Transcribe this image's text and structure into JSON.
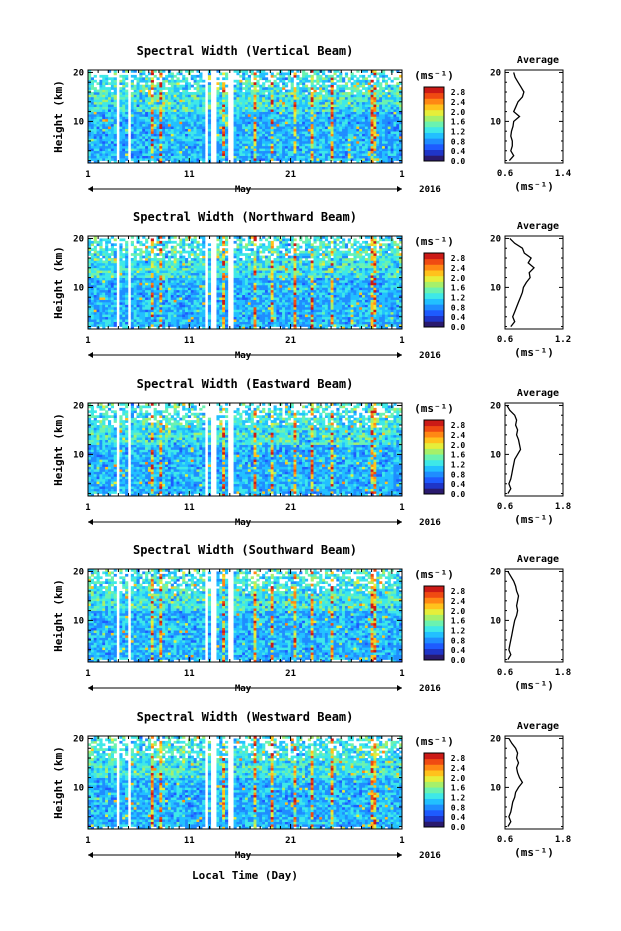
{
  "chart_data": [
    {
      "type": "heatmap",
      "title": "Spectral Width (Vertical Beam)",
      "ylabel": "Height (km)",
      "month_label": "May",
      "year_label": "2016",
      "x_tick_labels": [
        "1",
        "11",
        "21",
        "1"
      ],
      "y_tick_labels": [
        "10",
        "20"
      ],
      "colorbar": {
        "unit": "(ms⁻¹)",
        "ticks": [
          "0.0",
          "0.4",
          "0.8",
          "1.2",
          "1.6",
          "2.0",
          "2.4",
          "2.8"
        ],
        "range": [
          0,
          2.8
        ]
      },
      "average": {
        "title": "Average",
        "xlabel": "(ms⁻¹)",
        "x_tick_labels": [
          "0.6",
          "1.4"
        ],
        "xlim": [
          0.6,
          1.4
        ],
        "y_tick_labels": [
          "10",
          "20"
        ],
        "height_km": [
          2,
          3,
          4,
          5,
          6,
          7,
          8,
          9,
          10,
          11,
          12,
          13,
          14,
          15,
          16,
          17,
          18,
          19,
          20
        ],
        "width": [
          0.66,
          0.72,
          0.68,
          0.7,
          0.7,
          0.68,
          0.69,
          0.71,
          0.72,
          0.8,
          0.72,
          0.75,
          0.78,
          0.84,
          0.86,
          0.82,
          0.78,
          0.74,
          0.72
        ]
      }
    },
    {
      "type": "heatmap",
      "title": "Spectral Width (Northward Beam)",
      "ylabel": "Height (km)",
      "month_label": "May",
      "year_label": "2016",
      "x_tick_labels": [
        "1",
        "11",
        "21",
        "1"
      ],
      "y_tick_labels": [
        "10",
        "20"
      ],
      "colorbar": {
        "unit": "(ms⁻¹)",
        "ticks": [
          "0.0",
          "0.4",
          "0.8",
          "1.2",
          "1.6",
          "2.0",
          "2.4",
          "2.8"
        ],
        "range": [
          0,
          2.8
        ]
      },
      "average": {
        "title": "Average",
        "xlabel": "(ms⁻¹)",
        "x_tick_labels": [
          "0.6",
          "1.2"
        ],
        "xlim": [
          0.6,
          1.2
        ],
        "y_tick_labels": [
          "10",
          "20"
        ],
        "height_km": [
          2,
          3,
          4,
          5,
          6,
          7,
          8,
          9,
          10,
          11,
          12,
          13,
          14,
          15,
          16,
          17,
          18,
          19,
          20
        ],
        "width": [
          0.66,
          0.7,
          0.68,
          0.7,
          0.72,
          0.74,
          0.76,
          0.78,
          0.79,
          0.82,
          0.86,
          0.85,
          0.9,
          0.84,
          0.87,
          0.8,
          0.78,
          0.7,
          0.65
        ]
      }
    },
    {
      "type": "heatmap",
      "title": "Spectral Width (Eastward Beam)",
      "ylabel": "Height (km)",
      "month_label": "May",
      "year_label": "2016",
      "x_tick_labels": [
        "1",
        "11",
        "21",
        "1"
      ],
      "y_tick_labels": [
        "10",
        "20"
      ],
      "colorbar": {
        "unit": "(ms⁻¹)",
        "ticks": [
          "0.0",
          "0.4",
          "0.8",
          "1.2",
          "1.6",
          "2.0",
          "2.4",
          "2.8"
        ],
        "range": [
          0,
          2.8
        ]
      },
      "average": {
        "title": "Average",
        "xlabel": "(ms⁻¹)",
        "x_tick_labels": [
          "0.6",
          "1.8"
        ],
        "xlim": [
          0.6,
          1.8
        ],
        "y_tick_labels": [
          "10",
          "20"
        ],
        "height_km": [
          2,
          3,
          4,
          5,
          6,
          7,
          8,
          9,
          10,
          11,
          12,
          13,
          14,
          15,
          16,
          17,
          18,
          19,
          20
        ],
        "width": [
          0.66,
          0.72,
          0.68,
          0.72,
          0.74,
          0.76,
          0.78,
          0.8,
          0.86,
          0.92,
          0.9,
          0.88,
          0.84,
          0.86,
          0.82,
          0.84,
          0.8,
          0.7,
          0.64
        ]
      }
    },
    {
      "type": "heatmap",
      "title": "Spectral Width (Southward Beam)",
      "ylabel": "Height (km)",
      "month_label": "May",
      "year_label": "2016",
      "x_tick_labels": [
        "1",
        "11",
        "21",
        "1"
      ],
      "y_tick_labels": [
        "10",
        "20"
      ],
      "colorbar": {
        "unit": "(ms⁻¹)",
        "ticks": [
          "0.0",
          "0.4",
          "0.8",
          "1.2",
          "1.6",
          "2.0",
          "2.4",
          "2.8"
        ],
        "range": [
          0,
          2.8
        ]
      },
      "average": {
        "title": "Average",
        "xlabel": "(ms⁻¹)",
        "x_tick_labels": [
          "0.6",
          "1.8"
        ],
        "xlim": [
          0.6,
          1.8
        ],
        "y_tick_labels": [
          "10",
          "20"
        ],
        "height_km": [
          2,
          3,
          4,
          5,
          6,
          7,
          8,
          9,
          10,
          11,
          12,
          13,
          14,
          15,
          16,
          17,
          18,
          19,
          20
        ],
        "width": [
          0.66,
          0.72,
          0.68,
          0.7,
          0.72,
          0.74,
          0.76,
          0.78,
          0.8,
          0.84,
          0.86,
          0.84,
          0.86,
          0.88,
          0.84,
          0.82,
          0.78,
          0.72,
          0.66
        ]
      }
    },
    {
      "type": "heatmap",
      "title": "Spectral Width (Westward Beam)",
      "ylabel": "Height (km)",
      "month_label": "May",
      "year_label": "2016",
      "x_tick_labels": [
        "1",
        "11",
        "21",
        "1"
      ],
      "y_tick_labels": [
        "10",
        "20"
      ],
      "colorbar": {
        "unit": "(ms⁻¹)",
        "ticks": [
          "0.0",
          "0.4",
          "0.8",
          "1.2",
          "1.6",
          "2.0",
          "2.4",
          "2.8"
        ],
        "range": [
          0,
          2.8
        ]
      },
      "average": {
        "title": "Average",
        "xlabel": "(ms⁻¹)",
        "x_tick_labels": [
          "0.6",
          "1.8"
        ],
        "xlim": [
          0.6,
          1.8
        ],
        "y_tick_labels": [
          "10",
          "20"
        ],
        "height_km": [
          2,
          3,
          4,
          5,
          6,
          7,
          8,
          9,
          10,
          11,
          12,
          13,
          14,
          15,
          16,
          17,
          18,
          19,
          20
        ],
        "width": [
          0.66,
          0.72,
          0.68,
          0.72,
          0.74,
          0.76,
          0.8,
          0.82,
          0.88,
          0.96,
          0.9,
          0.86,
          0.84,
          0.88,
          0.84,
          0.86,
          0.82,
          0.74,
          0.68
        ]
      }
    }
  ],
  "figure": {
    "xlabel": "Local Time (Day)",
    "colormap": [
      "#2a1a6e",
      "#1f35c8",
      "#1e5bff",
      "#1f8dff",
      "#22c0ff",
      "#3ee8e8",
      "#6af2b0",
      "#a6f06a",
      "#e6ee3a",
      "#ffc21c",
      "#ff8814",
      "#f04a12",
      "#cc1a16"
    ],
    "missing_day_bands": [
      [
        3.6,
        4.1
      ],
      [
        4.7,
        5.2
      ],
      [
        12.4,
        12.8
      ],
      [
        13.0,
        13.5
      ],
      [
        14.8,
        15.3
      ]
    ]
  }
}
